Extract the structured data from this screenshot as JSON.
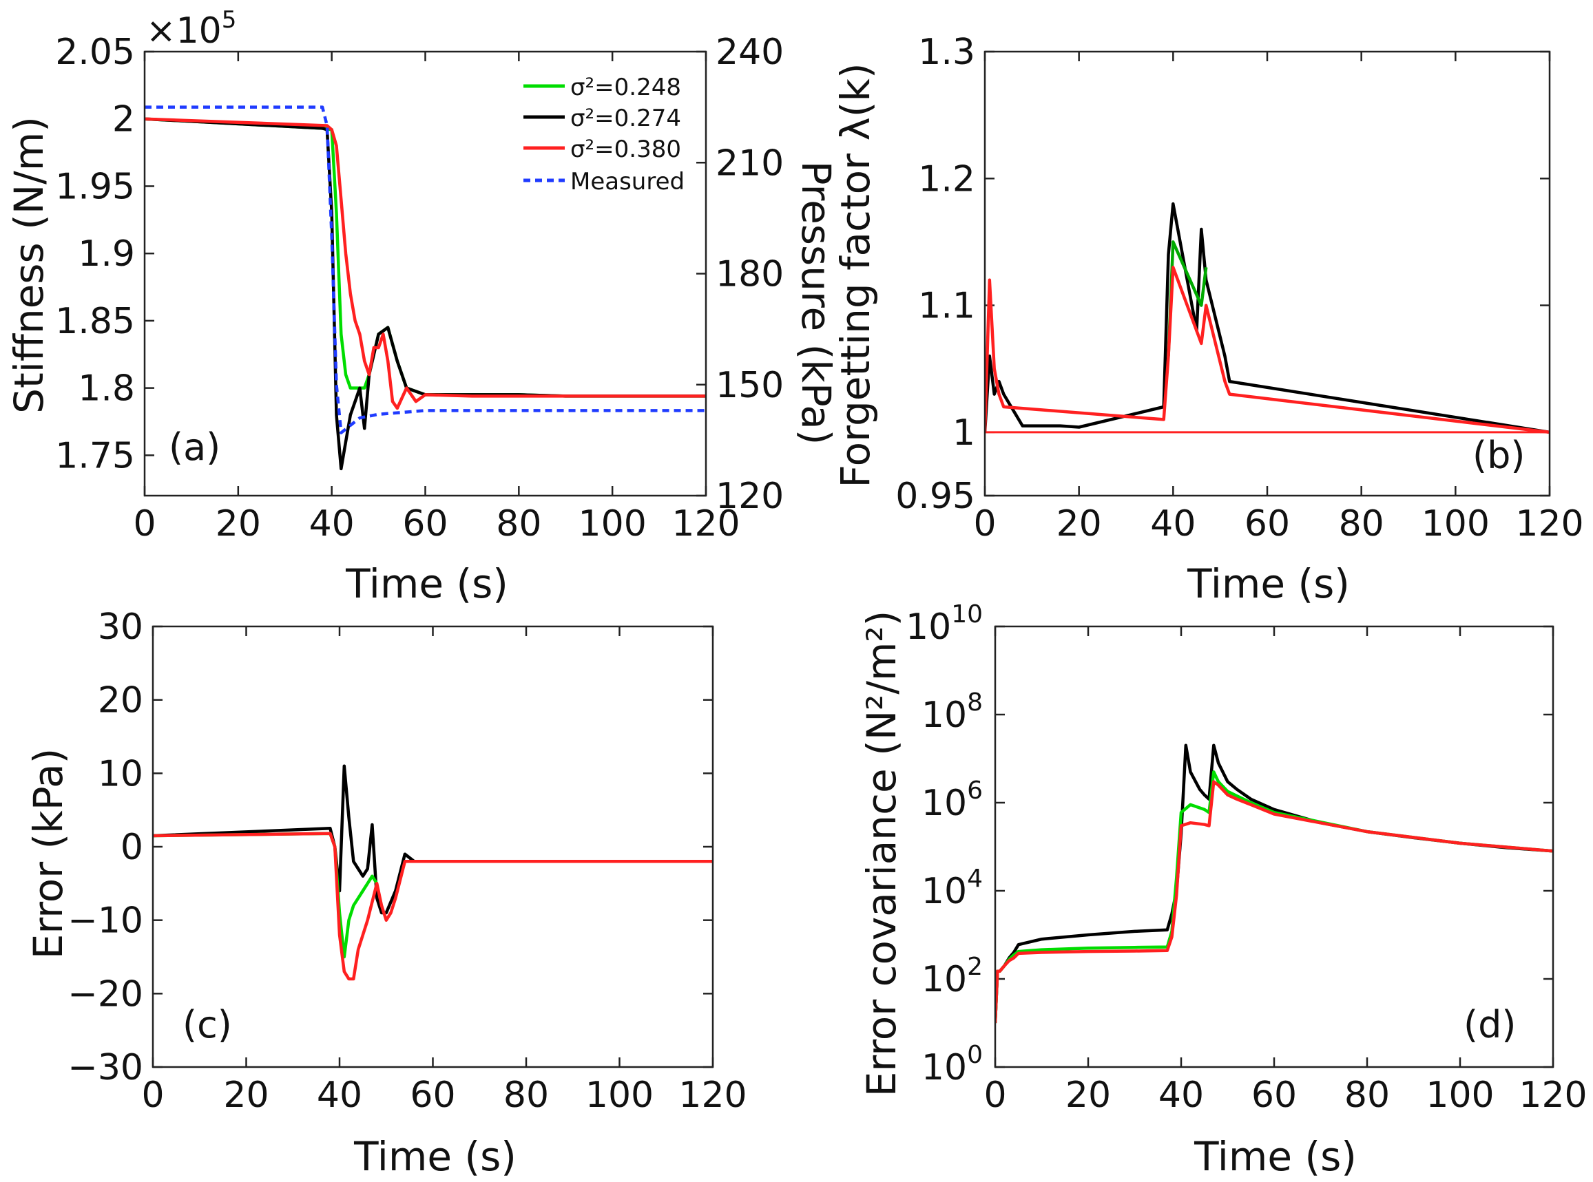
{
  "chart_data": [
    {
      "panel": "(a)",
      "type": "line",
      "xlabel": "Time (s)",
      "ylabel": "Stiffness (N/m)",
      "ylabel_right": "Pressure (kPa)",
      "exponent_label": "×10",
      "exponent_power": "5",
      "xlim": [
        0,
        120
      ],
      "ylim": [
        1.72,
        2.05
      ],
      "ylim_right": [
        120,
        240
      ],
      "xticks": [
        "0",
        "20",
        "40",
        "60",
        "80",
        "100",
        "120"
      ],
      "yticks": [
        "1.75",
        "1.8",
        "1.85",
        "1.9",
        "1.95",
        "2",
        "2.05"
      ],
      "yticks_right": [
        "120",
        "150",
        "180",
        "210",
        "240"
      ],
      "legend_position": "top-right",
      "series": [
        {
          "name": "σ²=0.248",
          "color": "#00dd00",
          "dashed": false,
          "x": [
            0,
            38,
            40,
            41,
            42,
            43,
            44,
            45,
            46,
            47,
            48,
            50,
            52,
            54,
            56,
            60,
            70,
            80,
            90,
            100,
            110,
            120
          ],
          "y": [
            2.0,
            1.993,
            1.992,
            1.93,
            1.84,
            1.81,
            1.8,
            1.8,
            1.8,
            1.8,
            1.81,
            1.84,
            1.845,
            1.82,
            1.8,
            1.795,
            1.795,
            1.795,
            1.794,
            1.794,
            1.794,
            1.794
          ]
        },
        {
          "name": "σ²=0.274",
          "color": "#000000",
          "dashed": false,
          "x": [
            0,
            38,
            39,
            40,
            41,
            42,
            43,
            44,
            45,
            46,
            47,
            48,
            50,
            52,
            54,
            56,
            60,
            70,
            80,
            90,
            100,
            110,
            120
          ],
          "y": [
            2.0,
            1.993,
            1.992,
            1.93,
            1.78,
            1.74,
            1.76,
            1.78,
            1.79,
            1.8,
            1.77,
            1.81,
            1.84,
            1.845,
            1.82,
            1.8,
            1.795,
            1.795,
            1.795,
            1.794,
            1.794,
            1.794,
            1.794
          ]
        },
        {
          "name": "σ²=0.380",
          "color": "#ff2020",
          "dashed": false,
          "x": [
            0,
            39,
            40,
            41,
            42,
            43,
            44,
            45,
            46,
            47,
            48,
            49,
            50,
            51,
            52,
            53,
            54,
            56,
            58,
            60,
            70,
            80,
            90,
            100,
            110,
            120
          ],
          "y": [
            2.0,
            1.995,
            1.992,
            1.98,
            1.94,
            1.9,
            1.87,
            1.85,
            1.84,
            1.82,
            1.81,
            1.83,
            1.83,
            1.84,
            1.82,
            1.79,
            1.785,
            1.8,
            1.79,
            1.795,
            1.794,
            1.794,
            1.794,
            1.794,
            1.794,
            1.794
          ]
        },
        {
          "name": "Measured",
          "color": "#1f3bff",
          "dashed": true,
          "axis": "right",
          "x": [
            0,
            38,
            39,
            40,
            41,
            42,
            44,
            46,
            50,
            55,
            60,
            80,
            100,
            120
          ],
          "y": [
            225,
            225,
            220,
            190,
            150,
            137,
            139,
            141,
            142,
            142.5,
            143,
            143,
            143,
            143
          ]
        }
      ]
    },
    {
      "panel": "(b)",
      "type": "line",
      "xlabel": "Time (s)",
      "ylabel": "Forgetting factor λ(k)",
      "xlim": [
        0,
        120
      ],
      "ylim": [
        0.95,
        1.3
      ],
      "xticks": [
        "0",
        "20",
        "40",
        "60",
        "80",
        "100",
        "120"
      ],
      "yticks": [
        "0.95",
        "1",
        "1.1",
        "1.2",
        "1.3"
      ],
      "series": [
        {
          "name": "",
          "color": "#000000",
          "x": [
            0,
            1,
            2,
            3,
            4,
            8,
            12,
            16,
            20,
            38,
            39,
            40,
            45,
            46,
            47,
            51,
            52,
            120
          ],
          "y": [
            1.0,
            1.06,
            1.03,
            1.04,
            1.03,
            1.005,
            1.005,
            1.005,
            1.004,
            1.02,
            1.14,
            1.18,
            1.08,
            1.16,
            1.12,
            1.06,
            1.04,
            1.0
          ]
        },
        {
          "name": "",
          "color": "#00aa00",
          "x": [
            39,
            40,
            46,
            47
          ],
          "y": [
            1.06,
            1.15,
            1.1,
            1.13
          ]
        },
        {
          "name": "",
          "color": "#ff2020",
          "x": [
            0,
            1,
            2,
            3,
            4,
            38,
            39,
            40,
            46,
            47,
            51,
            52,
            120
          ],
          "y": [
            1.0,
            1.12,
            1.05,
            1.03,
            1.02,
            1.01,
            1.06,
            1.13,
            1.07,
            1.1,
            1.04,
            1.03,
            1.0
          ]
        }
      ]
    },
    {
      "panel": "(c)",
      "type": "line",
      "xlabel": "Time (s)",
      "ylabel": "Error (kPa)",
      "xlim": [
        0,
        120
      ],
      "ylim": [
        -30,
        30
      ],
      "xticks": [
        "0",
        "20",
        "40",
        "60",
        "80",
        "100",
        "120"
      ],
      "yticks": [
        "−30",
        "−20",
        "−10",
        "0",
        "10",
        "20",
        "30"
      ],
      "series": [
        {
          "name": "σ²=0.274",
          "color": "#000000",
          "x": [
            0,
            38,
            39,
            40,
            41,
            42,
            43,
            44,
            45,
            46,
            47,
            48,
            49,
            50,
            52,
            54,
            56,
            60,
            70,
            80,
            90,
            100,
            110,
            120
          ],
          "y": [
            1.5,
            2.5,
            0,
            -6,
            11,
            4,
            -2,
            -3,
            -4,
            -3,
            3,
            -7,
            -9,
            -9,
            -6,
            -1,
            -2,
            -2,
            -2,
            -2,
            -2,
            -2,
            -2,
            -2
          ]
        },
        {
          "name": "σ²=0.248",
          "color": "#00dd00",
          "x": [
            0,
            38,
            39,
            40,
            41,
            42,
            43,
            44,
            45,
            46,
            47,
            48
          ],
          "y": [
            1.5,
            1.8,
            0,
            -9,
            -15,
            -10,
            -8,
            -7,
            -6,
            -5,
            -4,
            -5
          ]
        },
        {
          "name": "σ²=0.380",
          "color": "#ff2020",
          "x": [
            0,
            38,
            39,
            40,
            41,
            42,
            43,
            44,
            46,
            48,
            49,
            50,
            51,
            52,
            54,
            56,
            60,
            70,
            80,
            90,
            100,
            110,
            120
          ],
          "y": [
            1.5,
            1.8,
            0,
            -12,
            -17,
            -18,
            -18,
            -14,
            -10,
            -5,
            -8,
            -10,
            -9,
            -7,
            -2,
            -2,
            -2,
            -2,
            -2,
            -2,
            -2,
            -2,
            -2
          ]
        }
      ]
    },
    {
      "panel": "(d)",
      "type": "line",
      "xlabel": "Time (s)",
      "ylabel": "Error covariance (N²/m²)",
      "log_y": true,
      "xlim": [
        0,
        120
      ],
      "ylim": [
        1,
        10000000000.0
      ],
      "xticks": [
        "0",
        "20",
        "40",
        "60",
        "80",
        "100",
        "120"
      ],
      "ytick_base": "10",
      "ytick_powers": [
        "0",
        "2",
        "4",
        "6",
        "8",
        "10"
      ],
      "series": [
        {
          "name": "σ²=0.274",
          "color": "#000000",
          "x": [
            0,
            0.5,
            1,
            2,
            3,
            4,
            5,
            10,
            20,
            30,
            37,
            38,
            39,
            40,
            41,
            42,
            44,
            45,
            46,
            47,
            48,
            50,
            52,
            55,
            60,
            70,
            80,
            90,
            100,
            110,
            120
          ],
          "y": [
            10,
            150,
            150,
            200,
            300,
            400,
            600,
            800,
            1000,
            1200,
            1300,
            3000,
            10000,
            200000,
            20000000,
            5000000,
            2000000,
            1500000,
            1200000,
            20000000,
            8000000,
            3000000,
            2000000,
            1200000,
            700000,
            350000,
            220000,
            160000,
            120000,
            95000,
            80000
          ]
        },
        {
          "name": "σ²=0.248",
          "color": "#00dd00",
          "x": [
            0,
            0.5,
            1,
            2,
            3,
            4,
            5,
            10,
            20,
            30,
            37,
            38,
            39,
            40,
            42,
            45,
            46,
            47,
            48,
            50,
            55,
            60,
            80,
            100,
            120
          ],
          "y": [
            10,
            150,
            150,
            200,
            280,
            350,
            420,
            460,
            500,
            520,
            530,
            1200,
            20000,
            600000,
            900000,
            700000,
            600000,
            5000000,
            3000000,
            1800000,
            1000000,
            600000,
            220000,
            120000,
            80000
          ]
        },
        {
          "name": "σ²=0.380",
          "color": "#ff2020",
          "x": [
            0,
            0.5,
            1,
            2,
            3,
            4,
            5,
            10,
            20,
            30,
            37,
            38,
            39,
            40,
            42,
            45,
            46,
            47,
            48,
            50,
            52,
            55,
            60,
            80,
            100,
            120
          ],
          "y": [
            10,
            150,
            150,
            200,
            260,
            300,
            380,
            400,
            420,
            430,
            440,
            900,
            8000,
            300000,
            350000,
            320000,
            300000,
            3000000,
            2500000,
            1500000,
            1200000,
            900000,
            550000,
            220000,
            120000,
            80000
          ]
        }
      ]
    }
  ]
}
